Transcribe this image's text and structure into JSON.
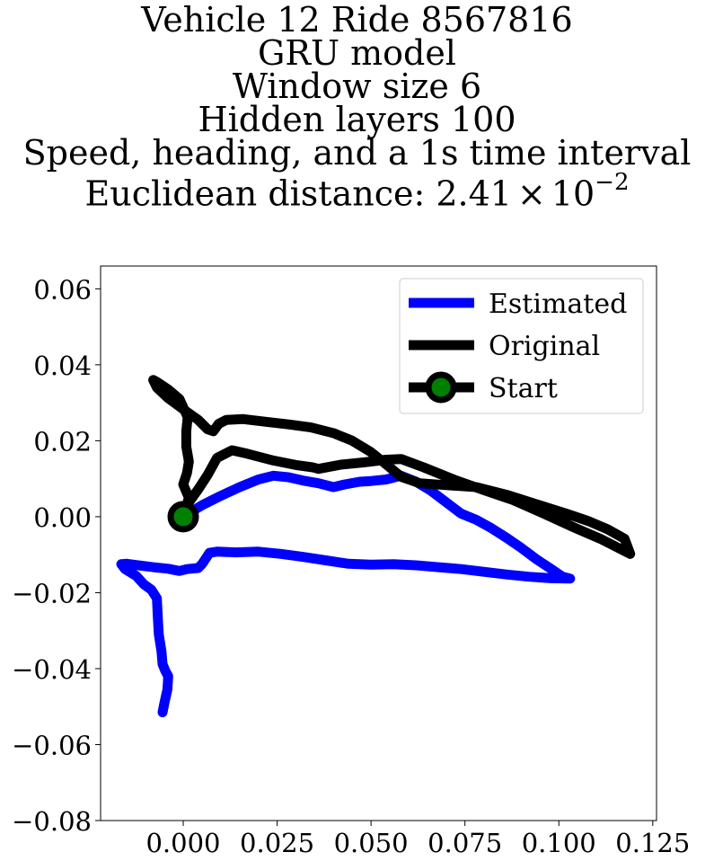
{
  "chart_data": {
    "type": "line",
    "title_lines": [
      "Vehicle 12 Ride 8567816",
      "GRU model",
      "Window size 6",
      "Hidden layers 100",
      "Speed, heading, and a 1s time interval"
    ],
    "title_last_prefix": "Euclidean distance: 2.41",
    "title_last_times": "×",
    "title_last_base": "10",
    "title_last_exp": "−2",
    "xlim": [
      -0.022,
      0.126
    ],
    "ylim": [
      -0.08,
      0.066
    ],
    "xticks": [
      0.0,
      0.025,
      0.05,
      0.075,
      0.1,
      0.125
    ],
    "xtick_labels": [
      "0.000",
      "0.025",
      "0.050",
      "0.075",
      "0.100",
      "0.125"
    ],
    "yticks": [
      -0.08,
      -0.06,
      -0.04,
      -0.02,
      0.0,
      0.02,
      0.04,
      0.06
    ],
    "ytick_labels": [
      "−0.08",
      "−0.06",
      "−0.04",
      "−0.02",
      "0.00",
      "0.02",
      "0.04",
      "0.06"
    ],
    "legend_position": "upper right",
    "legend": [
      {
        "label": "Estimated",
        "color": "#0000ff",
        "marker": false
      },
      {
        "label": "Original",
        "color": "#000000",
        "marker": false
      },
      {
        "label": "Start",
        "color": "#000000",
        "marker": true,
        "marker_color": "#008000"
      }
    ],
    "series": [
      {
        "name": "Estimated",
        "color": "#0000ff",
        "points": [
          [
            0.0,
            0.0
          ],
          [
            0.005,
            0.003
          ],
          [
            0.01,
            0.0055
          ],
          [
            0.015,
            0.0078
          ],
          [
            0.02,
            0.0098
          ],
          [
            0.024,
            0.0108
          ],
          [
            0.028,
            0.0104
          ],
          [
            0.032,
            0.0095
          ],
          [
            0.036,
            0.0088
          ],
          [
            0.04,
            0.0078
          ],
          [
            0.043,
            0.0085
          ],
          [
            0.047,
            0.0092
          ],
          [
            0.05,
            0.0094
          ],
          [
            0.054,
            0.0098
          ],
          [
            0.058,
            0.0108
          ],
          [
            0.062,
            0.0092
          ],
          [
            0.066,
            0.0068
          ],
          [
            0.07,
            0.0038
          ],
          [
            0.074,
            0.0008
          ],
          [
            0.078,
            -0.0008
          ],
          [
            0.082,
            -0.003
          ],
          [
            0.086,
            -0.0055
          ],
          [
            0.09,
            -0.0082
          ],
          [
            0.094,
            -0.0112
          ],
          [
            0.098,
            -0.0138
          ],
          [
            0.101,
            -0.0158
          ],
          [
            0.103,
            -0.0163
          ],
          [
            0.098,
            -0.0162
          ],
          [
            0.092,
            -0.0158
          ],
          [
            0.086,
            -0.0152
          ],
          [
            0.08,
            -0.0145
          ],
          [
            0.074,
            -0.0138
          ],
          [
            0.068,
            -0.0133
          ],
          [
            0.062,
            -0.0128
          ],
          [
            0.056,
            -0.0125
          ],
          [
            0.05,
            -0.0126
          ],
          [
            0.044,
            -0.0124
          ],
          [
            0.038,
            -0.0115
          ],
          [
            0.032,
            -0.0106
          ],
          [
            0.026,
            -0.0098
          ],
          [
            0.02,
            -0.0092
          ],
          [
            0.014,
            -0.0094
          ],
          [
            0.009,
            -0.0092
          ],
          [
            0.007,
            -0.0095
          ],
          [
            0.006,
            -0.011
          ],
          [
            0.005,
            -0.0125
          ],
          [
            0.004,
            -0.0135
          ],
          [
            0.001,
            -0.0138
          ],
          [
            -0.001,
            -0.0143
          ],
          [
            -0.004,
            -0.0137
          ],
          [
            -0.008,
            -0.0133
          ],
          [
            -0.012,
            -0.0128
          ],
          [
            -0.015,
            -0.0124
          ],
          [
            -0.0165,
            -0.0125
          ],
          [
            -0.0155,
            -0.0138
          ],
          [
            -0.0125,
            -0.0156
          ],
          [
            -0.0105,
            -0.0178
          ],
          [
            -0.0085,
            -0.0192
          ],
          [
            -0.007,
            -0.0215
          ],
          [
            -0.0068,
            -0.026
          ],
          [
            -0.0065,
            -0.031
          ],
          [
            -0.0058,
            -0.0355
          ],
          [
            -0.0055,
            -0.0388
          ],
          [
            -0.0048,
            -0.0405
          ],
          [
            -0.004,
            -0.042
          ],
          [
            -0.0042,
            -0.0455
          ],
          [
            -0.005,
            -0.049
          ],
          [
            -0.0055,
            -0.0515
          ]
        ]
      },
      {
        "name": "Original",
        "color": "#000000",
        "points": [
          [
            0.0,
            0.0
          ],
          [
            0.0015,
            0.005
          ],
          [
            0.0,
            0.0085
          ],
          [
            0.001,
            0.0115
          ],
          [
            0.0015,
            0.0145
          ],
          [
            0.0008,
            0.0185
          ],
          [
            0.0008,
            0.0225
          ],
          [
            0.0012,
            0.0262
          ],
          [
            -0.001,
            0.031
          ],
          [
            -0.004,
            0.0335
          ],
          [
            -0.007,
            0.0355
          ],
          [
            -0.008,
            0.036
          ],
          [
            -0.007,
            0.034
          ],
          [
            -0.004,
            0.0312
          ],
          [
            0.0,
            0.0283
          ],
          [
            0.004,
            0.0255
          ],
          [
            0.0065,
            0.023
          ],
          [
            0.008,
            0.0225
          ],
          [
            0.0095,
            0.0245
          ],
          [
            0.0115,
            0.0255
          ],
          [
            0.016,
            0.0257
          ],
          [
            0.022,
            0.025
          ],
          [
            0.028,
            0.0243
          ],
          [
            0.034,
            0.0235
          ],
          [
            0.04,
            0.022
          ],
          [
            0.045,
            0.02
          ],
          [
            0.05,
            0.017
          ],
          [
            0.054,
            0.0138
          ],
          [
            0.058,
            0.0105
          ],
          [
            0.063,
            0.0088
          ],
          [
            0.07,
            0.0083
          ],
          [
            0.078,
            0.0078
          ],
          [
            0.086,
            0.0058
          ],
          [
            0.094,
            0.0033
          ],
          [
            0.102,
            0.0008
          ],
          [
            0.108,
            -0.0012
          ],
          [
            0.113,
            -0.0033
          ],
          [
            0.1175,
            -0.0058
          ],
          [
            0.119,
            -0.0098
          ],
          [
            0.116,
            -0.0083
          ],
          [
            0.111,
            -0.0058
          ],
          [
            0.104,
            -0.0028
          ],
          [
            0.096,
            0.0008
          ],
          [
            0.088,
            0.0043
          ],
          [
            0.08,
            0.007
          ],
          [
            0.072,
            0.0098
          ],
          [
            0.064,
            0.013
          ],
          [
            0.058,
            0.0152
          ],
          [
            0.054,
            0.015
          ],
          [
            0.048,
            0.0143
          ],
          [
            0.042,
            0.0137
          ],
          [
            0.036,
            0.0126
          ],
          [
            0.0345,
            0.013
          ],
          [
            0.03,
            0.0136
          ],
          [
            0.024,
            0.0148
          ],
          [
            0.017,
            0.0166
          ],
          [
            0.013,
            0.0175
          ],
          [
            0.009,
            0.0155
          ],
          [
            0.0065,
            0.011
          ],
          [
            0.004,
            0.0072
          ],
          [
            0.0015,
            0.0038
          ],
          [
            0.0,
            0.0
          ]
        ]
      }
    ],
    "start_point": [
      0.0,
      0.0
    ]
  }
}
